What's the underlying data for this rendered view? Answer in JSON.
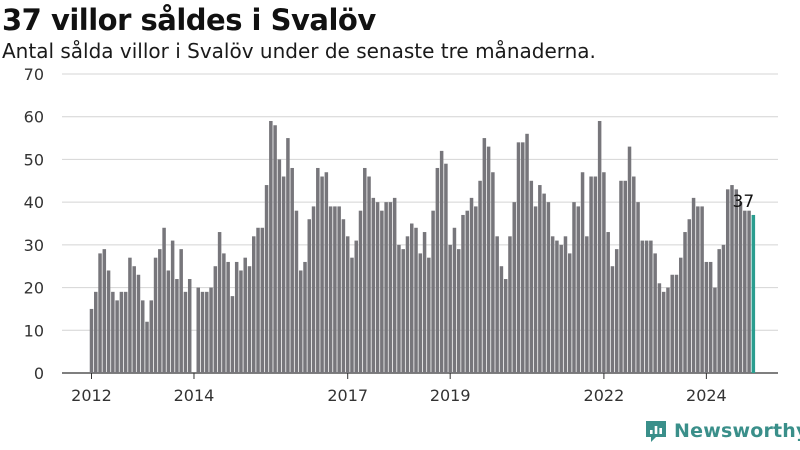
{
  "title": "37 villor såldes i Svalöv",
  "subtitle": "Antal sålda villor i Svalöv under de senaste tre månaderna.",
  "brand": {
    "name": "Newsworthy",
    "icon": "newsworthy-logo-icon"
  },
  "colors": {
    "bar": "#77767b",
    "highlight": "#2a9d8f",
    "grid": "#d4d4d4",
    "axis": "#333333",
    "brand": "#3a8f8a"
  },
  "chart_data": {
    "type": "bar",
    "ylim": [
      0,
      70
    ],
    "yticks": [
      0,
      10,
      20,
      30,
      40,
      50,
      60,
      70
    ],
    "xticks": [
      "2012",
      "2014",
      "2017",
      "2019",
      "2022",
      "2024"
    ],
    "grid": true,
    "values": [
      15,
      19,
      28,
      29,
      24,
      19,
      17,
      19,
      19,
      27,
      25,
      23,
      17,
      12,
      17,
      27,
      29,
      34,
      24,
      31,
      22,
      29,
      19,
      22,
      0,
      20,
      19,
      19,
      20,
      25,
      33,
      28,
      26,
      18,
      26,
      24,
      27,
      25,
      32,
      34,
      34,
      44,
      59,
      58,
      50,
      46,
      55,
      48,
      38,
      24,
      26,
      36,
      39,
      48,
      46,
      47,
      39,
      39,
      39,
      36,
      32,
      27,
      31,
      38,
      48,
      46,
      41,
      40,
      38,
      40,
      40,
      41,
      30,
      29,
      32,
      35,
      34,
      28,
      33,
      27,
      38,
      48,
      52,
      49,
      30,
      34,
      29,
      37,
      38,
      41,
      39,
      45,
      55,
      53,
      47,
      32,
      25,
      22,
      32,
      40,
      54,
      54,
      56,
      45,
      39,
      44,
      42,
      40,
      32,
      31,
      30,
      32,
      28,
      40,
      39,
      47,
      32,
      46,
      46,
      59,
      47,
      33,
      25,
      29,
      45,
      45,
      53,
      46,
      40,
      31,
      31,
      31,
      28,
      21,
      19,
      20,
      23,
      23,
      27,
      33,
      36,
      41,
      39,
      39,
      26,
      26,
      20,
      29,
      30,
      43,
      44,
      43,
      40,
      38,
      38,
      37
    ],
    "highlight_index": 155,
    "highlight_label": "37",
    "bar_color": "#77767b",
    "highlight_color": "#2a9d8f"
  }
}
